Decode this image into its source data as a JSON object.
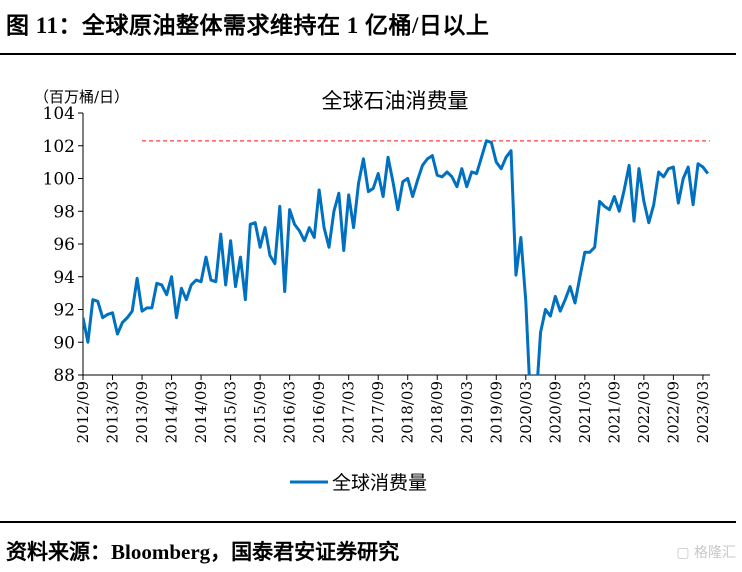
{
  "figure_title": "图 11：全球原油整体需求维持在 1 亿桶/日以上",
  "source": "资料来源：Bloomberg，国泰君安证券研究",
  "watermark": "格隆汇",
  "colors": {
    "series": "#0070c0",
    "reference_line": "#ff3b3b"
  },
  "chart_data": {
    "type": "line",
    "title": "全球石油消费量",
    "ylabel": "（百万桶/日）",
    "xlabel": "",
    "ylim": [
      88,
      104
    ],
    "yticks": [
      88,
      90,
      92,
      94,
      96,
      98,
      100,
      102,
      104
    ],
    "xticks": [
      "2012/09",
      "2013/03",
      "2013/09",
      "2014/03",
      "2014/09",
      "2015/03",
      "2015/09",
      "2016/03",
      "2016/09",
      "2017/03",
      "2017/09",
      "2018/03",
      "2018/09",
      "2019/03",
      "2019/09",
      "2020/03",
      "2020/09",
      "2021/03",
      "2021/09",
      "2022/03",
      "2022/09",
      "2023/03"
    ],
    "start_month": "2012/09",
    "legend": {
      "position": "bottom",
      "entries": [
        "全球消费量"
      ]
    },
    "reference_line": {
      "value": 102.3,
      "start": "2013/09",
      "style": "dashed"
    },
    "series": [
      {
        "name": "全球消费量",
        "values": [
          91.5,
          90.0,
          92.6,
          92.5,
          91.5,
          91.7,
          91.8,
          90.5,
          91.2,
          91.5,
          91.9,
          93.9,
          91.9,
          92.1,
          92.1,
          93.6,
          93.5,
          92.9,
          94.0,
          91.5,
          93.3,
          92.6,
          93.5,
          93.8,
          93.7,
          95.2,
          93.8,
          93.7,
          96.6,
          93.5,
          96.2,
          93.4,
          95.2,
          92.6,
          97.2,
          97.3,
          95.8,
          97.0,
          95.3,
          94.8,
          98.3,
          93.1,
          98.1,
          97.2,
          96.8,
          96.2,
          97.0,
          96.4,
          99.3,
          97.0,
          95.8,
          98.0,
          99.1,
          95.6,
          99.0,
          97.0,
          99.7,
          101.2,
          99.2,
          99.4,
          100.3,
          98.9,
          101.3,
          99.8,
          98.1,
          99.8,
          100.0,
          98.9,
          99.9,
          100.8,
          101.2,
          101.4,
          100.2,
          100.1,
          100.4,
          100.1,
          99.5,
          100.6,
          99.5,
          100.4,
          100.3,
          101.3,
          102.3,
          102.2,
          101.0,
          100.6,
          101.3,
          101.7,
          94.1,
          96.4,
          92.5,
          86.0,
          86.0,
          90.6,
          92.0,
          91.6,
          92.8,
          91.9,
          92.6,
          93.4,
          92.4,
          94.0,
          95.5,
          95.5,
          95.8,
          98.6,
          98.3,
          98.1,
          98.9,
          98.0,
          99.3,
          100.8,
          97.4,
          100.6,
          98.6,
          97.3,
          98.4,
          100.4,
          100.1,
          100.6,
          100.7,
          98.5,
          100.0,
          100.7,
          98.4,
          100.9,
          100.7,
          100.3
        ]
      }
    ]
  }
}
